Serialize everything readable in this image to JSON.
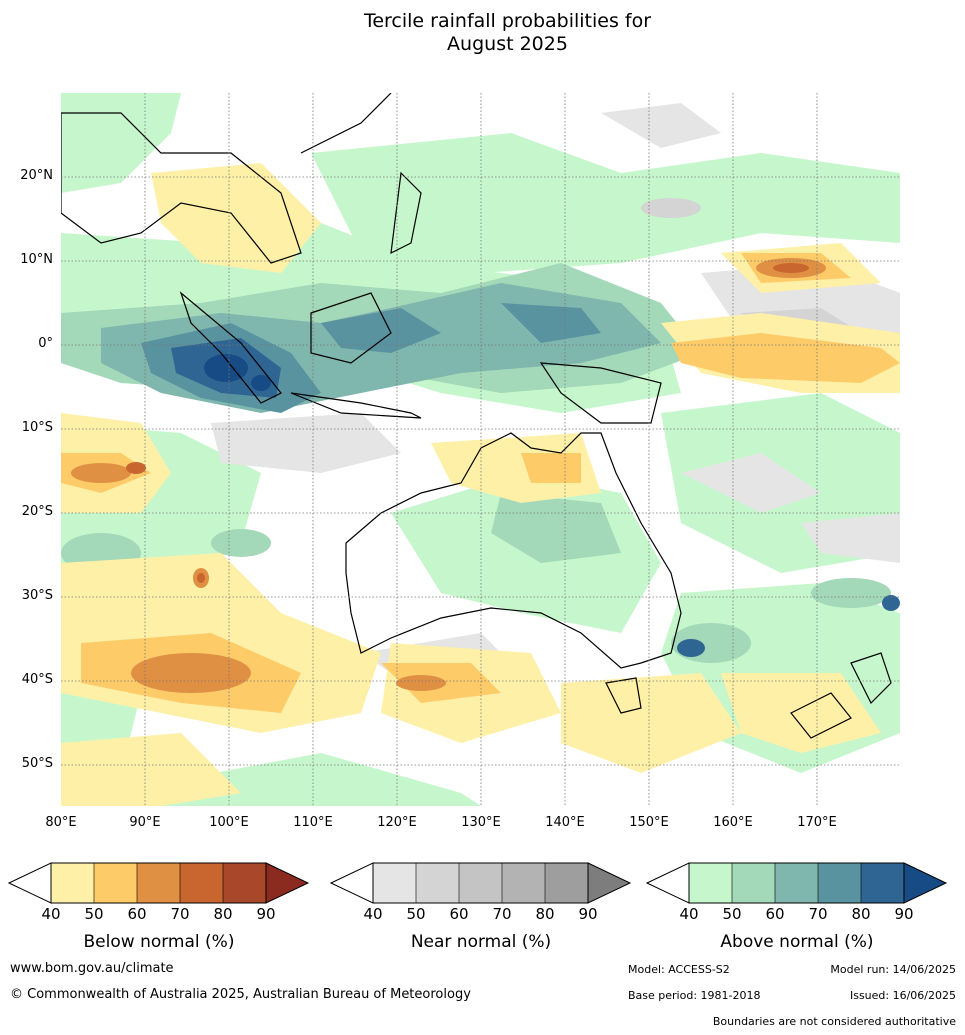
{
  "title": {
    "line1": "Tercile rainfall probabilities for",
    "line2": "August 2025"
  },
  "map": {
    "lat_labels": [
      "20°N",
      "10°N",
      "0°",
      "10°S",
      "20°S",
      "30°S",
      "40°S",
      "50°S"
    ],
    "lon_labels": [
      "80°E",
      "90°E",
      "100°E",
      "110°E",
      "120°E",
      "130°E",
      "140°E",
      "150°E",
      "160°E",
      "170°E"
    ]
  },
  "colorbars": [
    {
      "title": "Below normal (%)",
      "ticks": [
        "40",
        "50",
        "60",
        "70",
        "80",
        "90"
      ],
      "colors": [
        "#fff0a8",
        "#fecb69",
        "#e09043",
        "#c9652f",
        "#a8472a",
        "#8b2a1f"
      ]
    },
    {
      "title": "Near normal (%)",
      "ticks": [
        "40",
        "50",
        "60",
        "70",
        "80",
        "90"
      ],
      "colors": [
        "#e5e5e5",
        "#d4d4d4",
        "#c4c4c4",
        "#b3b3b3",
        "#9e9e9e",
        "#7d7d7d"
      ]
    },
    {
      "title": "Above normal (%)",
      "ticks": [
        "40",
        "50",
        "60",
        "70",
        "80",
        "90"
      ],
      "colors": [
        "#c6f7cc",
        "#a3d8b8",
        "#7fb6ad",
        "#5a93a0",
        "#2e6593",
        "#164b85"
      ]
    }
  ],
  "footer": {
    "website": "www.bom.gov.au/climate",
    "copyright": "© Commonwealth of Australia 2025, Australian Bureau of Meteorology",
    "model": "Model: ACCESS-S2",
    "model_run": "Model run: 14/06/2025",
    "base_period": "Base period: 1981-2018",
    "issued": "Issued: 16/06/2025",
    "disclaimer": "Boundaries are not considered authoritative"
  }
}
